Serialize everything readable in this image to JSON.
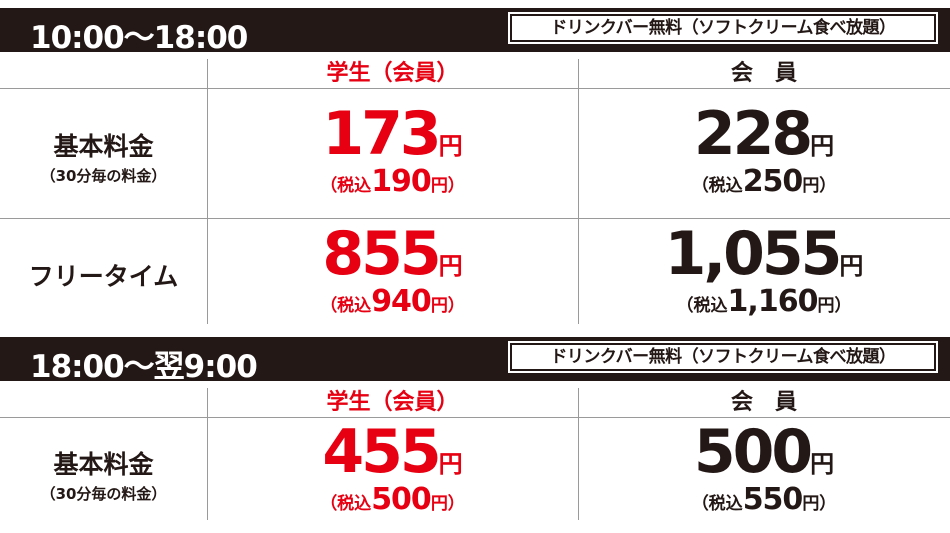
{
  "sections": [
    {
      "time": "10:00〜18:00",
      "badge": "ドリンクバー無料（ソフトクリーム食べ放題）",
      "headers": [
        "学生（会員）",
        "会　員"
      ],
      "rows": [
        {
          "label": "基本料金",
          "sublabel": "（30分毎の料金）",
          "cells": [
            {
              "price": "173",
              "unit": "円",
              "tax_prefix": "（税込",
              "tax": "190",
              "tax_suffix": "円）"
            },
            {
              "price": "228",
              "unit": "円",
              "tax_prefix": "（税込",
              "tax": "250",
              "tax_suffix": "円）"
            }
          ]
        },
        {
          "label": "フリータイム",
          "cells": [
            {
              "price": "855",
              "unit": "円",
              "tax_prefix": "（税込",
              "tax": "940",
              "tax_suffix": "円）"
            },
            {
              "price": "1,055",
              "unit": "円",
              "tax_prefix": "（税込",
              "tax": "1,160",
              "tax_suffix": "円）"
            }
          ]
        }
      ]
    },
    {
      "time": "18:00〜翌9:00",
      "badge": "ドリンクバー無料（ソフトクリーム食べ放題）",
      "headers": [
        "学生（会員）",
        "会　員"
      ],
      "rows": [
        {
          "label": "基本料金",
          "sublabel": "（30分毎の料金）",
          "cells": [
            {
              "price": "455",
              "unit": "円",
              "tax_prefix": "（税込",
              "tax": "500",
              "tax_suffix": "円）"
            },
            {
              "price": "500",
              "unit": "円",
              "tax_prefix": "（税込",
              "tax": "550",
              "tax_suffix": "円）"
            }
          ]
        }
      ]
    }
  ]
}
